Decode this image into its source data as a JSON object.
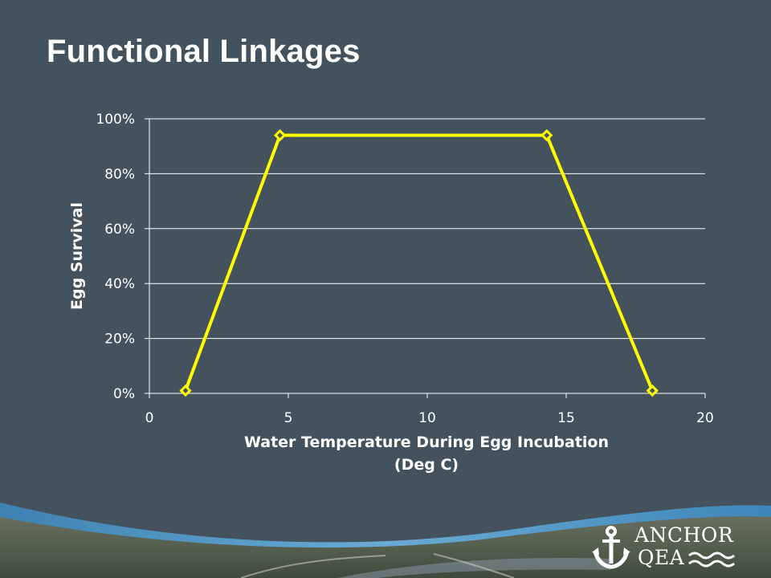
{
  "slide": {
    "title": "Functional Linkages"
  },
  "colors": {
    "background": "#44525e",
    "series_line": "#ffff00",
    "gridline": "#ffffff",
    "text": "#ffffff"
  },
  "chart_data": {
    "type": "scatter",
    "title": "",
    "xlabel_line1": "Water Temperature During Egg Incubation",
    "xlabel_line2": "(Deg C)",
    "ylabel": "Egg Survival",
    "xlim": [
      0,
      20
    ],
    "ylim": [
      0,
      100
    ],
    "x_ticks": [
      0,
      5,
      10,
      15,
      20
    ],
    "x_tick_labels": [
      "0",
      "5",
      "10",
      "15",
      "20"
    ],
    "y_ticks": [
      0,
      20,
      40,
      60,
      80,
      100
    ],
    "y_tick_labels": [
      "0%",
      "20%",
      "40%",
      "60%",
      "80%",
      "100%"
    ],
    "grid": "horizontal",
    "legend": "none",
    "series": [
      {
        "x": [
          1.3,
          4.7,
          14.3,
          18.1
        ],
        "y": [
          1,
          94,
          94,
          1
        ],
        "marker": "diamond",
        "line": "straight"
      }
    ]
  },
  "logo": {
    "line1": "ANCHOR",
    "line2": "QEA"
  }
}
